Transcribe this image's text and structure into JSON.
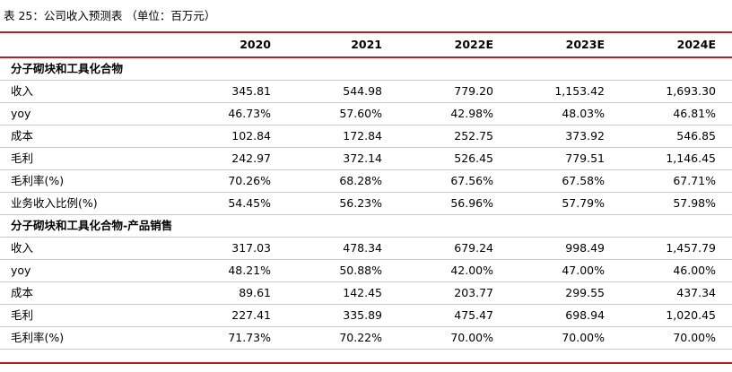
{
  "caption": "表 25：公司收入预测表 （单位：百万元）",
  "columns": [
    "",
    "2020",
    "2021",
    "2022E",
    "2023E",
    "2024E"
  ],
  "sections": [
    {
      "title": "分子砌块和工具化合物",
      "rows": [
        {
          "label": "收入",
          "values": [
            "345.81",
            "544.98",
            "779.20",
            "1,153.42",
            "1,693.30"
          ]
        },
        {
          "label": "yoy",
          "values": [
            "46.73%",
            "57.60%",
            "42.98%",
            "48.03%",
            "46.81%"
          ]
        },
        {
          "label": "成本",
          "values": [
            "102.84",
            "172.84",
            "252.75",
            "373.92",
            "546.85"
          ]
        },
        {
          "label": "毛利",
          "values": [
            "242.97",
            "372.14",
            "526.45",
            "779.51",
            "1,146.45"
          ]
        },
        {
          "label": "毛利率(%)",
          "values": [
            "70.26%",
            "68.28%",
            "67.56%",
            "67.58%",
            "67.71%"
          ]
        },
        {
          "label": "业务收入比例(%)",
          "values": [
            "54.45%",
            "56.23%",
            "56.96%",
            "57.79%",
            "57.98%"
          ]
        }
      ]
    },
    {
      "title": "分子砌块和工具化合物-产品销售",
      "rows": [
        {
          "label": "收入",
          "values": [
            "317.03",
            "478.34",
            "679.24",
            "998.49",
            "1,457.79"
          ]
        },
        {
          "label": "yoy",
          "values": [
            "48.21%",
            "50.88%",
            "42.00%",
            "47.00%",
            "46.00%"
          ]
        },
        {
          "label": "成本",
          "values": [
            "89.61",
            "142.45",
            "203.77",
            "299.55",
            "437.34"
          ]
        },
        {
          "label": "毛利",
          "values": [
            "227.41",
            "335.89",
            "475.47",
            "698.94",
            "1,020.45"
          ]
        },
        {
          "label": "毛利率(%)",
          "values": [
            "71.73%",
            "70.22%",
            "70.00%",
            "70.00%",
            "70.00%"
          ]
        }
      ]
    }
  ],
  "colors": {
    "rule": "#b22222",
    "row_divider": "#c8c8c8"
  }
}
